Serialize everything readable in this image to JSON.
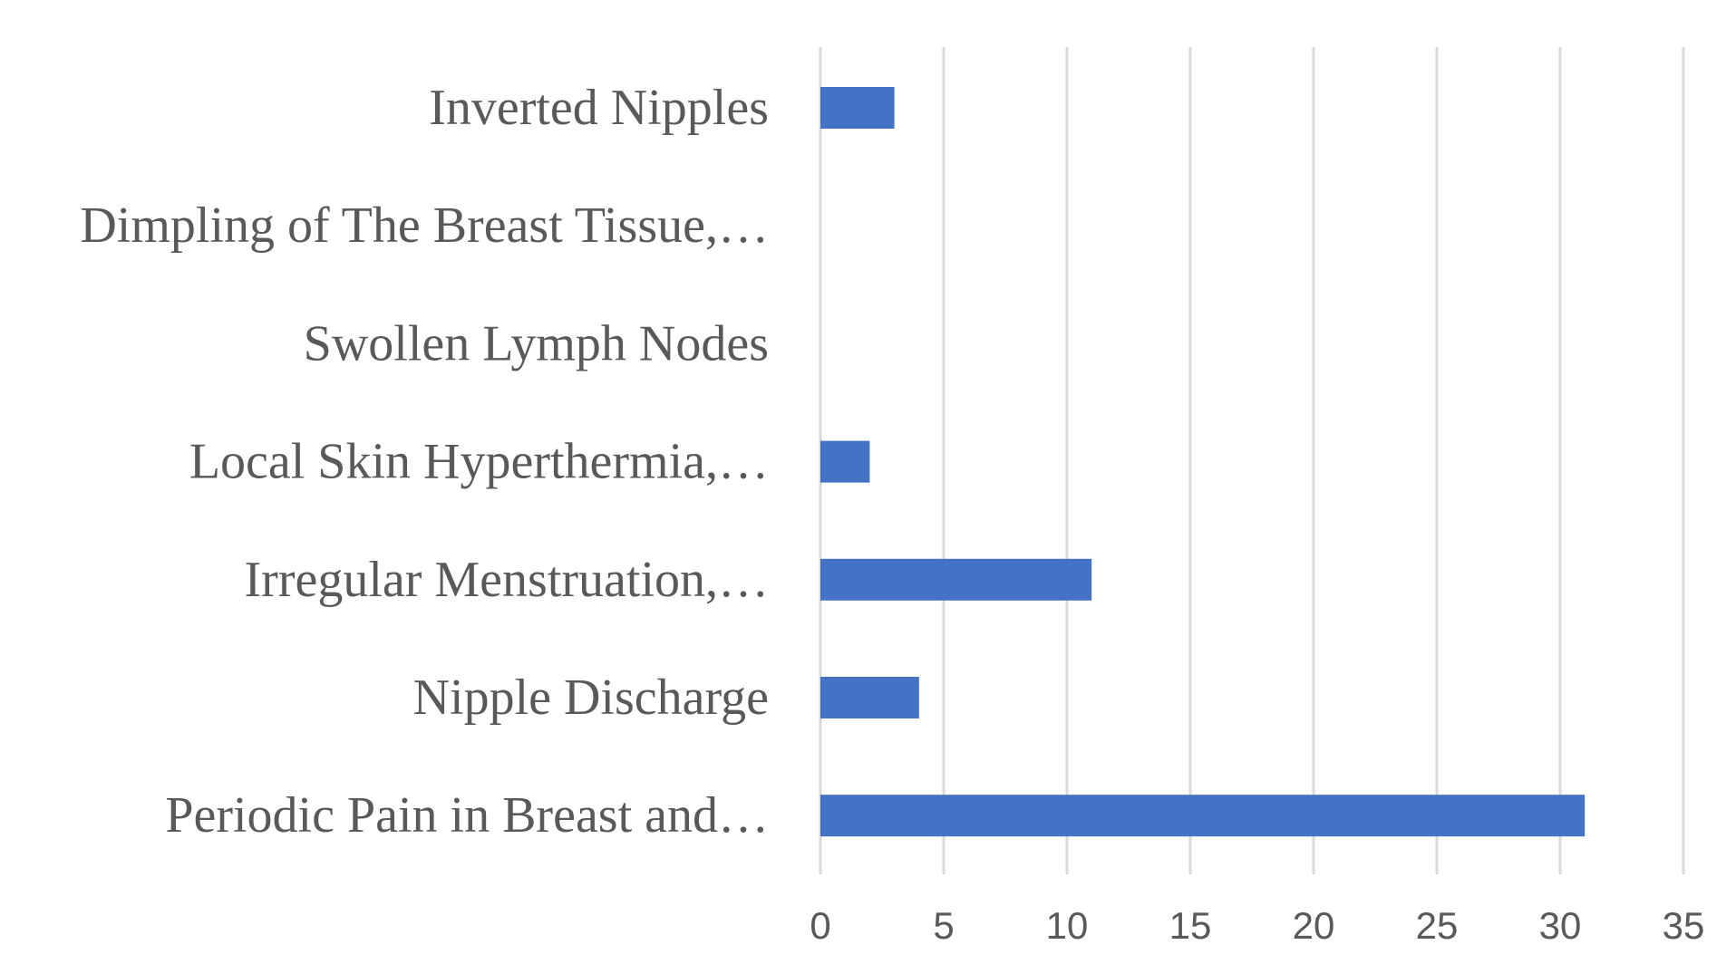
{
  "chart_data": {
    "type": "bar",
    "orientation": "horizontal",
    "title": "",
    "xlabel": "",
    "ylabel": "",
    "categories": [
      "Inverted Nipples",
      "Dimpling of The Breast Tissue,…",
      "Swollen Lymph Nodes",
      "Local Skin Hyperthermia,…",
      "Irregular Menstruation,…",
      "Nipple Discharge",
      "Periodic Pain in Breast and…"
    ],
    "values": [
      3,
      0,
      0,
      2,
      11,
      4,
      31
    ],
    "xlim": [
      0,
      35
    ],
    "ticks": [
      "0",
      "5",
      "10",
      "15",
      "20",
      "25",
      "30",
      "35"
    ],
    "grid": true,
    "legend": "none",
    "bar_color": "#4472c4",
    "grid_color": "#d9d9d9",
    "text_color": "#595959"
  }
}
